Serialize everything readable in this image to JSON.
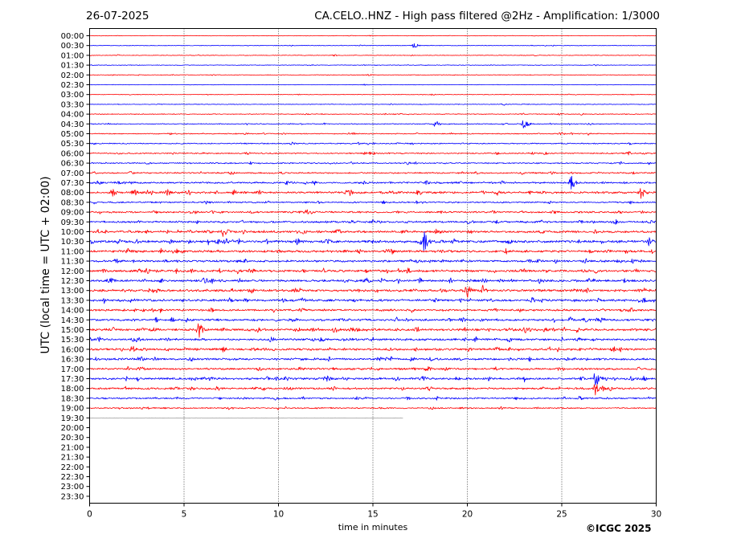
{
  "header": {
    "date": "26-07-2025",
    "title": "CA.CELO..HNZ - High pass filtered @2Hz - Amplification: 1/3000"
  },
  "footer": {
    "copyright": "©ICGC 2025"
  },
  "chart_data": {
    "type": "line",
    "subtype": "helicorder",
    "xlabel": "time in minutes",
    "ylabel": "UTC (local time = UTC + 02:00)",
    "xlim": [
      0,
      30
    ],
    "x_ticks": [
      0,
      5,
      10,
      15,
      20,
      25,
      30
    ],
    "vertical_gridlines": [
      5,
      10,
      15,
      20,
      25
    ],
    "row_labels": [
      "00:00",
      "00:30",
      "01:00",
      "01:30",
      "02:00",
      "02:30",
      "03:00",
      "03:30",
      "04:00",
      "04:30",
      "05:00",
      "05:30",
      "06:00",
      "06:30",
      "07:00",
      "07:30",
      "08:00",
      "08:30",
      "09:00",
      "09:30",
      "10:00",
      "10:30",
      "11:00",
      "11:30",
      "12:00",
      "12:30",
      "13:00",
      "13:30",
      "14:00",
      "14:30",
      "15:00",
      "15:30",
      "16:00",
      "16:30",
      "17:00",
      "17:30",
      "18:00",
      "18:30",
      "19:00",
      "19:30",
      "20:00",
      "20:30",
      "21:00",
      "21:30",
      "22:00",
      "22:30",
      "23:00",
      "23:30"
    ],
    "trace_colors": [
      "#ff0000",
      "#0000ff"
    ],
    "trace_amplitudes": [
      0.15,
      0.2,
      0.2,
      0.2,
      0.2,
      0.15,
      0.2,
      0.2,
      0.25,
      0.3,
      0.3,
      0.35,
      0.4,
      0.4,
      0.45,
      0.55,
      0.65,
      0.45,
      0.55,
      0.6,
      0.7,
      0.75,
      0.7,
      0.65,
      0.7,
      0.7,
      0.75,
      0.7,
      0.6,
      0.65,
      0.75,
      0.65,
      0.7,
      0.65,
      0.6,
      0.65,
      0.6,
      0.5,
      0.4,
      0.05
    ],
    "last_trace_end_minute": 16.6,
    "events": [
      {
        "row": 1,
        "minute": 17.2,
        "amplitude": 1.0
      },
      {
        "row": 9,
        "minute": 23.0,
        "amplitude": 1.6
      },
      {
        "row": 9,
        "minute": 18.3,
        "amplitude": 1.4
      },
      {
        "row": 15,
        "minute": 25.5,
        "amplitude": 2.4
      },
      {
        "row": 16,
        "minute": 29.2,
        "amplitude": 2.0
      },
      {
        "row": 16,
        "minute": 1.2,
        "amplitude": 1.4
      },
      {
        "row": 20,
        "minute": 7.1,
        "amplitude": 2.0
      },
      {
        "row": 21,
        "minute": 17.7,
        "amplitude": 3.4
      },
      {
        "row": 21,
        "minute": 29.6,
        "amplitude": 1.6
      },
      {
        "row": 26,
        "minute": 20.0,
        "amplitude": 2.4
      },
      {
        "row": 26,
        "minute": 20.8,
        "amplitude": 1.8
      },
      {
        "row": 30,
        "minute": 5.8,
        "amplitude": 2.6
      },
      {
        "row": 35,
        "minute": 26.8,
        "amplitude": 3.0
      },
      {
        "row": 36,
        "minute": 26.8,
        "amplitude": 2.4
      }
    ]
  }
}
